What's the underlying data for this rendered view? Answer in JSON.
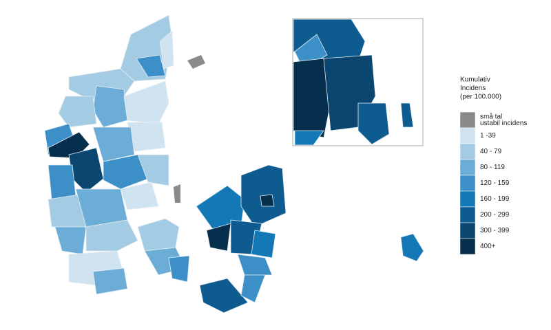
{
  "legend": {
    "title": [
      "Kumulativ",
      "Incidens",
      "(per 100.000)"
    ],
    "items": [
      {
        "lines": [
          "små tal",
          "ustabil incidens"
        ],
        "color": "#8a8a8a"
      },
      {
        "lines": [
          "1 -39"
        ],
        "color": "#cfe3f0"
      },
      {
        "lines": [
          "40 - 79"
        ],
        "color": "#a3cbe3"
      },
      {
        "lines": [
          "80 - 119"
        ],
        "color": "#6badd6"
      },
      {
        "lines": [
          "120 - 159"
        ],
        "color": "#3c90c7"
      },
      {
        "lines": [
          "160 - 199"
        ],
        "color": "#1478b7"
      },
      {
        "lines": [
          "200 - 299"
        ],
        "color": "#0e5b90"
      },
      {
        "lines": [
          "300 - 399"
        ],
        "color": "#0a4670"
      },
      {
        "lines": [
          "400+"
        ],
        "color": "#062f4e"
      }
    ]
  }
}
